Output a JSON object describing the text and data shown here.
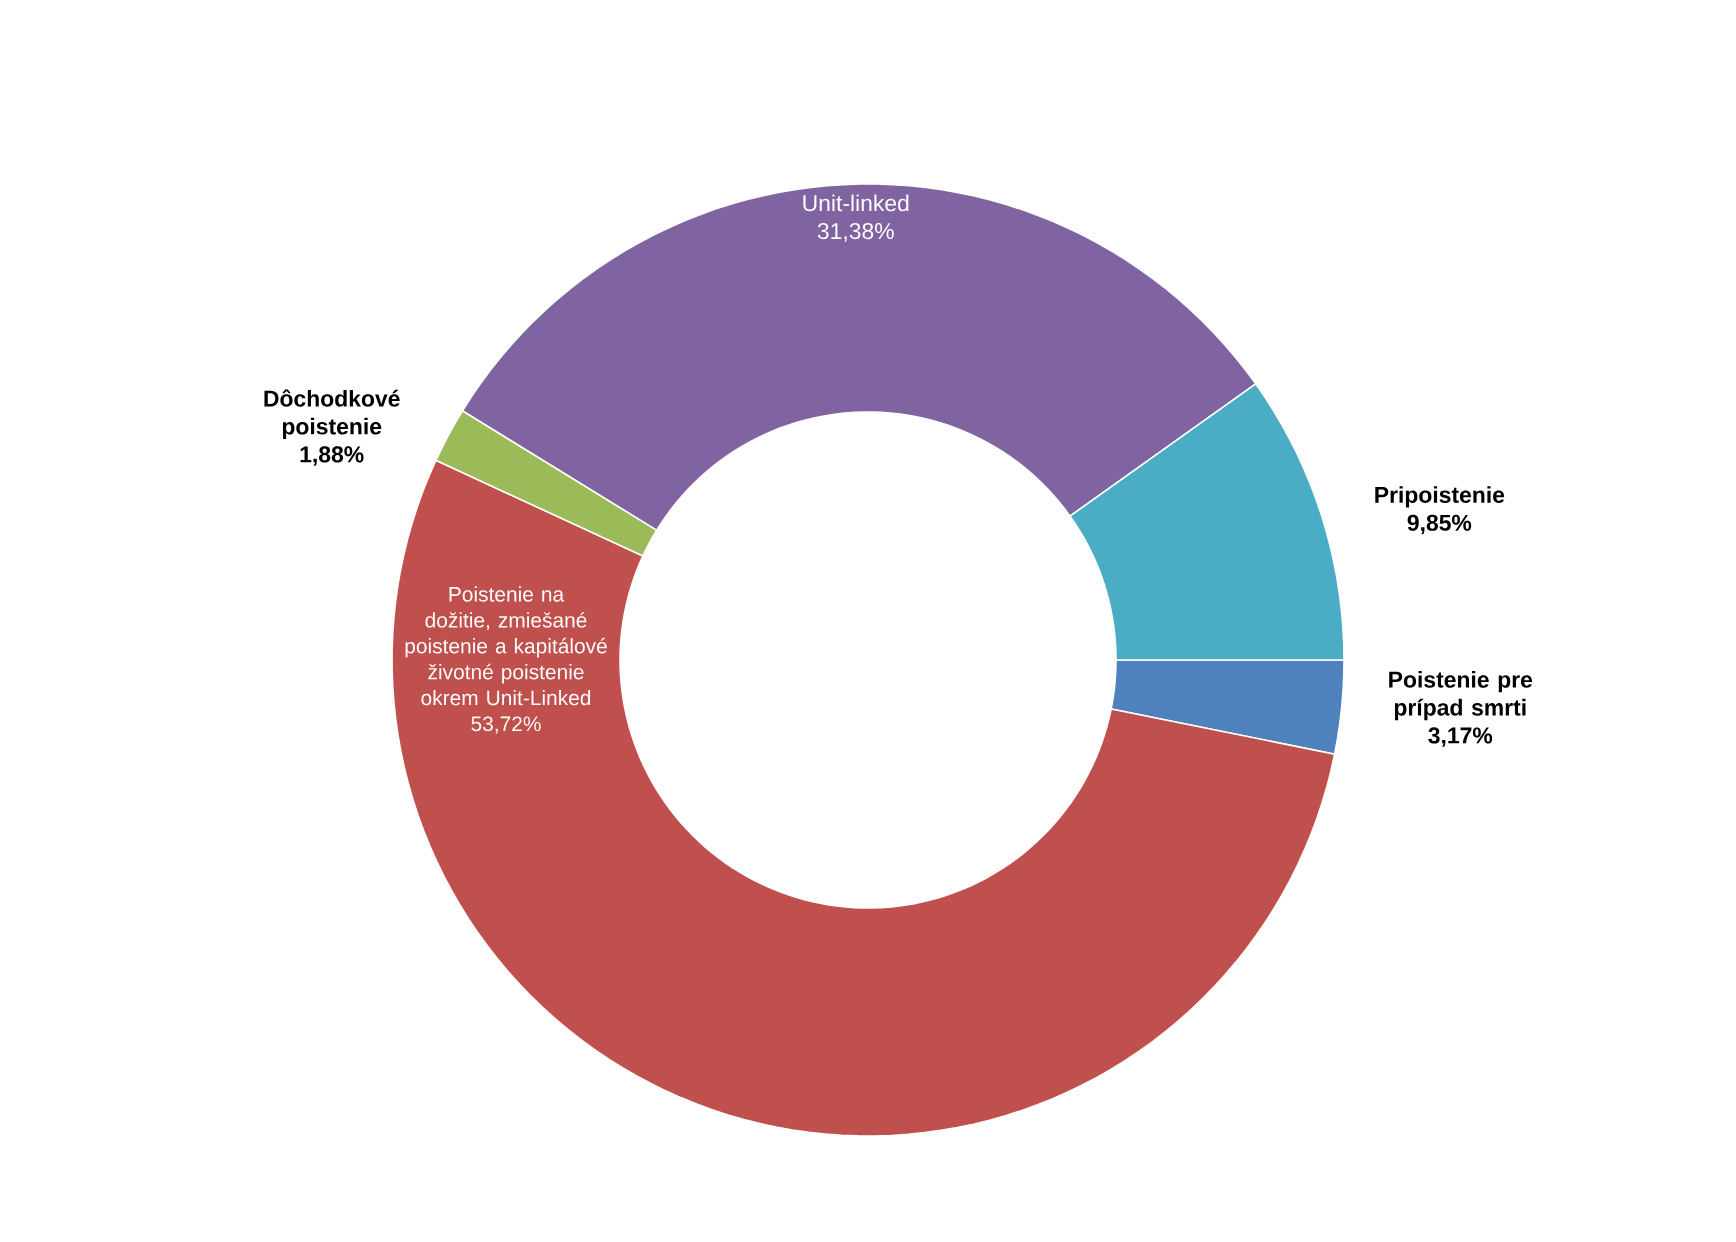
{
  "chart_data": {
    "type": "donut",
    "categories": [
      "Poistenie pre prípad smrti",
      "Poistenie na dožitie, zmiešané poistenie a kapitálové životné poistenie okrem Unit-Linked",
      "Dôchodkové poistenie",
      "Unit-linked",
      "Pripoistenie"
    ],
    "values": [
      3.17,
      53.72,
      1.88,
      31.38,
      9.85
    ],
    "colors": [
      "#4f81bd",
      "#c0504d",
      "#9bbb59",
      "#8064a2",
      "#4bacc6"
    ],
    "value_labels": [
      "3,17%",
      "53,72%",
      "1,88%",
      "31,38%",
      "9,85%"
    ]
  }
}
